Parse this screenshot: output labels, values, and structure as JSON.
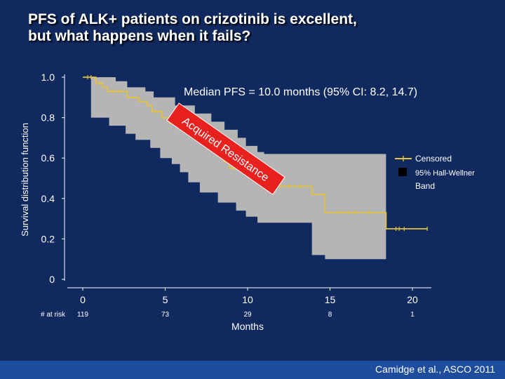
{
  "slide": {
    "title_line1": "PFS of ALK+ patients on crizotinib is excellent,",
    "title_line2": "but what happens when it fails?",
    "citation": "Camidge et al., ASCO 2011"
  },
  "colors": {
    "background": "#102a60",
    "survival_line": "#e3c23d",
    "confidence_band": "#b5b5b5",
    "resistance_box": "#e8201e",
    "footer": "#1d4d9c"
  },
  "chart_data": {
    "type": "line",
    "title": "Median PFS = 10.0 months (95% CI: 8.2, 14.7)",
    "xlabel": "Months",
    "ylabel": "Survival distribution function",
    "xlim": [
      0,
      20.5
    ],
    "ylim": [
      0,
      1.0
    ],
    "xticks": [
      "0",
      "5",
      "10",
      "15",
      "20"
    ],
    "xtick_values": [
      0,
      5,
      10,
      15,
      20
    ],
    "yticks": [
      "0",
      "0.2",
      "0.4",
      "0.6",
      "0.8",
      "1.0"
    ],
    "ytick_values": [
      0,
      0.2,
      0.4,
      0.6,
      0.8,
      1.0
    ],
    "at_risk_label": "# at risk",
    "at_risk": [
      {
        "x": 0,
        "n": "119"
      },
      {
        "x": 5,
        "n": "73"
      },
      {
        "x": 10,
        "n": "29"
      },
      {
        "x": 15,
        "n": "8"
      },
      {
        "x": 20,
        "n": "1"
      }
    ],
    "legend": [
      {
        "label": "Censored"
      },
      {
        "label_line1": "95% Hall-Wellner",
        "label_line2": "Band"
      }
    ],
    "annotation": "Acquired Resistance",
    "survival": [
      [
        0,
        1.0
      ],
      [
        0.8,
        1.0
      ],
      [
        0.8,
        0.97
      ],
      [
        1.2,
        0.97
      ],
      [
        1.2,
        0.95
      ],
      [
        1.5,
        0.95
      ],
      [
        1.5,
        0.93
      ],
      [
        2.7,
        0.93
      ],
      [
        2.7,
        0.9
      ],
      [
        3.4,
        0.9
      ],
      [
        3.4,
        0.88
      ],
      [
        3.9,
        0.88
      ],
      [
        3.9,
        0.86
      ],
      [
        4.2,
        0.86
      ],
      [
        4.2,
        0.83
      ],
      [
        4.8,
        0.83
      ],
      [
        4.8,
        0.8
      ],
      [
        5.3,
        0.8
      ],
      [
        5.3,
        0.77
      ],
      [
        5.9,
        0.77
      ],
      [
        5.9,
        0.75
      ],
      [
        6.5,
        0.75
      ],
      [
        6.5,
        0.73
      ],
      [
        7.1,
        0.73
      ],
      [
        7.1,
        0.7
      ],
      [
        7.5,
        0.7
      ],
      [
        7.5,
        0.68
      ],
      [
        7.9,
        0.68
      ],
      [
        7.9,
        0.64
      ],
      [
        8.2,
        0.64
      ],
      [
        8.2,
        0.61
      ],
      [
        8.6,
        0.61
      ],
      [
        8.6,
        0.58
      ],
      [
        8.9,
        0.58
      ],
      [
        8.9,
        0.55
      ],
      [
        9.6,
        0.55
      ],
      [
        9.6,
        0.53
      ],
      [
        10.1,
        0.53
      ],
      [
        10.1,
        0.5
      ],
      [
        10.7,
        0.5
      ],
      [
        10.7,
        0.47
      ],
      [
        11.2,
        0.47
      ],
      [
        11.2,
        0.46
      ],
      [
        13.9,
        0.46
      ],
      [
        13.9,
        0.42
      ],
      [
        14.7,
        0.42
      ],
      [
        14.7,
        0.33
      ],
      [
        18.4,
        0.33
      ],
      [
        18.4,
        0.25
      ],
      [
        20.9,
        0.25
      ]
    ],
    "band_upper": [
      [
        0.5,
        1.0
      ],
      [
        2.0,
        1.0
      ],
      [
        2.0,
        0.98
      ],
      [
        2.7,
        0.98
      ],
      [
        2.7,
        0.95
      ],
      [
        3.8,
        0.95
      ],
      [
        3.8,
        0.93
      ],
      [
        4.3,
        0.93
      ],
      [
        4.3,
        0.9
      ],
      [
        5.6,
        0.9
      ],
      [
        5.6,
        0.86
      ],
      [
        6.8,
        0.86
      ],
      [
        6.8,
        0.82
      ],
      [
        7.8,
        0.82
      ],
      [
        7.8,
        0.78
      ],
      [
        8.6,
        0.78
      ],
      [
        8.6,
        0.74
      ],
      [
        9.4,
        0.74
      ],
      [
        9.4,
        0.7
      ],
      [
        9.9,
        0.7
      ],
      [
        9.9,
        0.66
      ],
      [
        10.6,
        0.66
      ],
      [
        10.6,
        0.63
      ],
      [
        11.0,
        0.63
      ],
      [
        11.0,
        0.62
      ],
      [
        18.4,
        0.62
      ]
    ],
    "band_lower": [
      [
        18.4,
        0.1
      ],
      [
        14.7,
        0.1
      ],
      [
        14.7,
        0.12
      ],
      [
        13.9,
        0.12
      ],
      [
        13.9,
        0.28
      ],
      [
        10.6,
        0.28
      ],
      [
        10.6,
        0.31
      ],
      [
        9.9,
        0.31
      ],
      [
        9.9,
        0.34
      ],
      [
        9.3,
        0.34
      ],
      [
        9.3,
        0.38
      ],
      [
        8.2,
        0.38
      ],
      [
        8.2,
        0.43
      ],
      [
        7.1,
        0.43
      ],
      [
        7.1,
        0.48
      ],
      [
        6.4,
        0.48
      ],
      [
        6.4,
        0.53
      ],
      [
        5.9,
        0.53
      ],
      [
        5.9,
        0.57
      ],
      [
        5.4,
        0.57
      ],
      [
        5.4,
        0.6
      ],
      [
        4.7,
        0.6
      ],
      [
        4.7,
        0.65
      ],
      [
        4.1,
        0.65
      ],
      [
        4.1,
        0.69
      ],
      [
        3.2,
        0.69
      ],
      [
        3.2,
        0.72
      ],
      [
        2.6,
        0.72
      ],
      [
        2.6,
        0.76
      ],
      [
        1.6,
        0.76
      ],
      [
        1.6,
        0.8
      ],
      [
        0.5,
        0.8
      ]
    ],
    "censored": [
      [
        0.3,
        1.0
      ],
      [
        0.5,
        1.0
      ],
      [
        1.0,
        0.97
      ],
      [
        1.8,
        0.93
      ],
      [
        2.2,
        0.93
      ],
      [
        4.4,
        0.83
      ],
      [
        5.6,
        0.77
      ],
      [
        6.0,
        0.75
      ],
      [
        6.2,
        0.75
      ],
      [
        6.7,
        0.73
      ],
      [
        7.3,
        0.7
      ],
      [
        7.7,
        0.68
      ],
      [
        8.4,
        0.61
      ],
      [
        9.2,
        0.55
      ],
      [
        9.4,
        0.55
      ],
      [
        9.7,
        0.53
      ],
      [
        10.3,
        0.5
      ],
      [
        10.5,
        0.5
      ],
      [
        11.0,
        0.47
      ],
      [
        11.5,
        0.46
      ],
      [
        12.0,
        0.46
      ],
      [
        12.5,
        0.46
      ],
      [
        13.2,
        0.46
      ],
      [
        15.6,
        0.33
      ],
      [
        16.1,
        0.33
      ],
      [
        16.5,
        0.33
      ],
      [
        17.4,
        0.33
      ],
      [
        19.0,
        0.25
      ],
      [
        19.2,
        0.25
      ],
      [
        19.5,
        0.25
      ],
      [
        20.9,
        0.25
      ]
    ]
  }
}
